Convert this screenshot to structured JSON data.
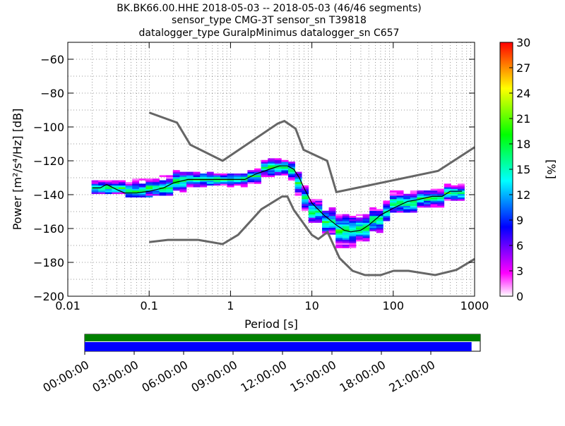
{
  "chart_data": {
    "type": "heatmap",
    "title_lines": [
      "BK.BK66.00.HHE   2018-05-03 -- 2018-05-03  (46/46 segments)",
      "sensor_type CMG-3T sensor_sn T39818",
      "datalogger_type GuralpMinimus datalogger_sn C657"
    ],
    "xlabel": "Period [s]",
    "ylabel": "Power [m²/s⁴/Hz] [dB]",
    "x_scale": "log",
    "xlim": [
      0.01,
      1000
    ],
    "ylim": [
      -200,
      -50
    ],
    "x_ticks": [
      {
        "value": 0.01,
        "label": "0.01"
      },
      {
        "value": 0.1,
        "label": "0.1"
      },
      {
        "value": 1,
        "label": "1"
      },
      {
        "value": 10,
        "label": "10"
      },
      {
        "value": 100,
        "label": "100"
      },
      {
        "value": 1000,
        "label": "1000"
      }
    ],
    "y_ticks": [
      {
        "value": -60,
        "label": "−60"
      },
      {
        "value": -80,
        "label": "−80"
      },
      {
        "value": -100,
        "label": "−100"
      },
      {
        "value": -120,
        "label": "−120"
      },
      {
        "value": -140,
        "label": "−140"
      },
      {
        "value": -160,
        "label": "−160"
      },
      {
        "value": -180,
        "label": "−180"
      },
      {
        "value": -200,
        "label": "−200"
      }
    ],
    "grid": true,
    "colorbar": {
      "label": "[%]",
      "range": [
        0,
        30
      ],
      "ticks": [
        {
          "value": 0,
          "label": "0"
        },
        {
          "value": 3,
          "label": "3"
        },
        {
          "value": 6,
          "label": "6"
        },
        {
          "value": 9,
          "label": "9"
        },
        {
          "value": 12,
          "label": "12"
        },
        {
          "value": 15,
          "label": "15"
        },
        {
          "value": 18,
          "label": "18"
        },
        {
          "value": 21,
          "label": "21"
        },
        {
          "value": 24,
          "label": "24"
        },
        {
          "value": 27,
          "label": "27"
        },
        {
          "value": 30,
          "label": "30"
        }
      ],
      "colors": [
        "#ffffff",
        "#ff00ff",
        "#8000ff",
        "#0000ff",
        "#0080ff",
        "#00ffff",
        "#00ff80",
        "#00ff00",
        "#80ff00",
        "#ffff00",
        "#ff8000",
        "#ff0000"
      ]
    },
    "mode_line": [
      [
        0.02,
        -136
      ],
      [
        0.025,
        -136
      ],
      [
        0.03,
        -134
      ],
      [
        0.04,
        -137
      ],
      [
        0.05,
        -139
      ],
      [
        0.07,
        -139
      ],
      [
        0.1,
        -138
      ],
      [
        0.15,
        -136
      ],
      [
        0.2,
        -133
      ],
      [
        0.3,
        -131
      ],
      [
        0.5,
        -131
      ],
      [
        0.8,
        -131
      ],
      [
        1,
        -131
      ],
      [
        1.5,
        -131
      ],
      [
        2,
        -128
      ],
      [
        3,
        -125
      ],
      [
        4,
        -123
      ],
      [
        5,
        -123
      ],
      [
        6,
        -125
      ],
      [
        7,
        -130
      ],
      [
        8,
        -136
      ],
      [
        10,
        -145
      ],
      [
        14,
        -152
      ],
      [
        20,
        -158
      ],
      [
        25,
        -161
      ],
      [
        30,
        -162
      ],
      [
        40,
        -161
      ],
      [
        50,
        -158
      ],
      [
        70,
        -152
      ],
      [
        100,
        -148
      ],
      [
        150,
        -144
      ],
      [
        200,
        -143
      ],
      [
        300,
        -141
      ],
      [
        400,
        -141
      ],
      [
        500,
        -138
      ],
      [
        700,
        -138
      ]
    ],
    "high_noise_model": [
      [
        0.1,
        -91.5
      ],
      [
        0.22,
        -97.4
      ],
      [
        0.32,
        -110.5
      ],
      [
        0.8,
        -120
      ],
      [
        3.8,
        -98
      ],
      [
        4.6,
        -96.5
      ],
      [
        6.3,
        -101
      ],
      [
        7.9,
        -113.5
      ],
      [
        15.4,
        -120
      ],
      [
        20,
        -138.5
      ],
      [
        354.8,
        -126
      ],
      [
        1000,
        -112
      ]
    ],
    "low_noise_model": [
      [
        0.1,
        -168
      ],
      [
        0.17,
        -166.7
      ],
      [
        0.4,
        -166.7
      ],
      [
        0.8,
        -169.2
      ],
      [
        1.24,
        -163.7
      ],
      [
        2.4,
        -148.6
      ],
      [
        4.3,
        -141.1
      ],
      [
        5,
        -141.1
      ],
      [
        6,
        -149
      ],
      [
        10,
        -163.8
      ],
      [
        12,
        -166.2
      ],
      [
        15.6,
        -162.1
      ],
      [
        21.9,
        -177.5
      ],
      [
        31.6,
        -185
      ],
      [
        45,
        -187.5
      ],
      [
        70,
        -187.5
      ],
      [
        101,
        -185
      ],
      [
        154,
        -185
      ],
      [
        328,
        -187.5
      ],
      [
        600,
        -184.4
      ],
      [
        1000,
        -178
      ]
    ],
    "histogram_bands": [
      {
        "period": [
          0.02,
          0.05
        ],
        "db": [
          -139,
          -131
        ],
        "peak_db": -136
      },
      {
        "period": [
          0.05,
          0.1
        ],
        "db": [
          -141,
          -131
        ],
        "peak_db": -138
      },
      {
        "period": [
          0.1,
          0.2
        ],
        "db": [
          -140,
          -129
        ],
        "peak_db": -136
      },
      {
        "period": [
          0.2,
          0.3
        ],
        "db": [
          -138,
          -126
        ],
        "peak_db": -132
      },
      {
        "period": [
          0.3,
          0.6
        ],
        "db": [
          -136,
          -127
        ],
        "peak_db": -131
      },
      {
        "period": [
          0.6,
          1.5
        ],
        "db": [
          -135,
          -128
        ],
        "peak_db": -131
      },
      {
        "period": [
          1.5,
          2.5
        ],
        "db": [
          -133,
          -125
        ],
        "peak_db": -129
      },
      {
        "period": [
          2.5,
          5
        ],
        "db": [
          -129,
          -119
        ],
        "peak_db": -124
      },
      {
        "period": [
          5,
          6.5
        ],
        "db": [
          -132,
          -121
        ],
        "peak_db": -126
      },
      {
        "period": [
          6.5,
          8
        ],
        "db": [
          -140,
          -127
        ],
        "peak_db": -133
      },
      {
        "period": [
          8,
          10
        ],
        "db": [
          -149,
          -135
        ],
        "peak_db": -142
      },
      {
        "period": [
          10,
          14
        ],
        "db": [
          -156,
          -143
        ],
        "peak_db": -150
      },
      {
        "period": [
          14,
          20
        ],
        "db": [
          -163,
          -148
        ],
        "peak_db": -156
      },
      {
        "period": [
          20,
          35
        ],
        "db": [
          -171,
          -152
        ],
        "peak_db": -161
      },
      {
        "period": [
          35,
          50
        ],
        "db": [
          -167,
          -152
        ],
        "peak_db": -160
      },
      {
        "period": [
          50,
          70
        ],
        "db": [
          -162,
          -148
        ],
        "peak_db": -155
      },
      {
        "period": [
          70,
          100
        ],
        "db": [
          -155,
          -143
        ],
        "peak_db": -150
      },
      {
        "period": [
          100,
          200
        ],
        "db": [
          -150,
          -138
        ],
        "peak_db": -145
      },
      {
        "period": [
          200,
          400
        ],
        "db": [
          -147,
          -137
        ],
        "peak_db": -142
      },
      {
        "period": [
          400,
          700
        ],
        "db": [
          -143,
          -134
        ],
        "peak_db": -139
      }
    ],
    "coverage": {
      "time_labels": [
        "00:00:00",
        "03:00:00",
        "06:00:00",
        "09:00:00",
        "12:00:00",
        "15:00:00",
        "18:00:00",
        "21:00:00"
      ],
      "top_bar_color": "#008000",
      "top_bar_fraction": 1.0,
      "bottom_bar_color": "#0000ff",
      "bottom_bar_fraction": 0.978
    }
  }
}
